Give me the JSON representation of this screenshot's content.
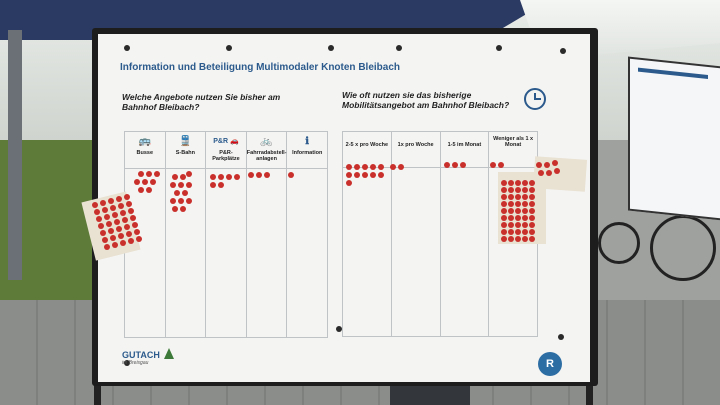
{
  "board": {
    "title": "Information und Beteiligung Multimodaler Knoten Bleibach",
    "question_left": "Welche Angebote nutzen Sie bisher am Bahnhof Bleibach?",
    "question_right": "Wie oft nutzen sie das bisherige Mobilitätsangebot am Bahnhof Bleibach?",
    "left_columns": [
      {
        "icon": "bus-icon",
        "glyph": "🚌",
        "label": "Busse"
      },
      {
        "icon": "train-icon",
        "glyph": "🚆",
        "label": "S-Bahn"
      },
      {
        "icon": "car-icon",
        "glyph": "P&R 🚗",
        "label": "P&R-Parkplätze"
      },
      {
        "icon": "bicycle-icon",
        "glyph": "🚲",
        "label": "Fahrradabstell-anlagen"
      },
      {
        "icon": "info-icon",
        "glyph": "ℹ",
        "label": "Information"
      }
    ],
    "right_columns": [
      {
        "label": "2-5 x pro Woche"
      },
      {
        "label": "1x pro Woche"
      },
      {
        "label": "1-5 im Monat"
      },
      {
        "label": "Weniger als 1 x Monat"
      }
    ],
    "logo_left": "GUTACH",
    "logo_left_sub": "im Breisgau",
    "logo_right": "R"
  },
  "colors": {
    "accent": "#2c5a8c",
    "sticker": "#c9302c",
    "tent": "#2b3a63"
  }
}
